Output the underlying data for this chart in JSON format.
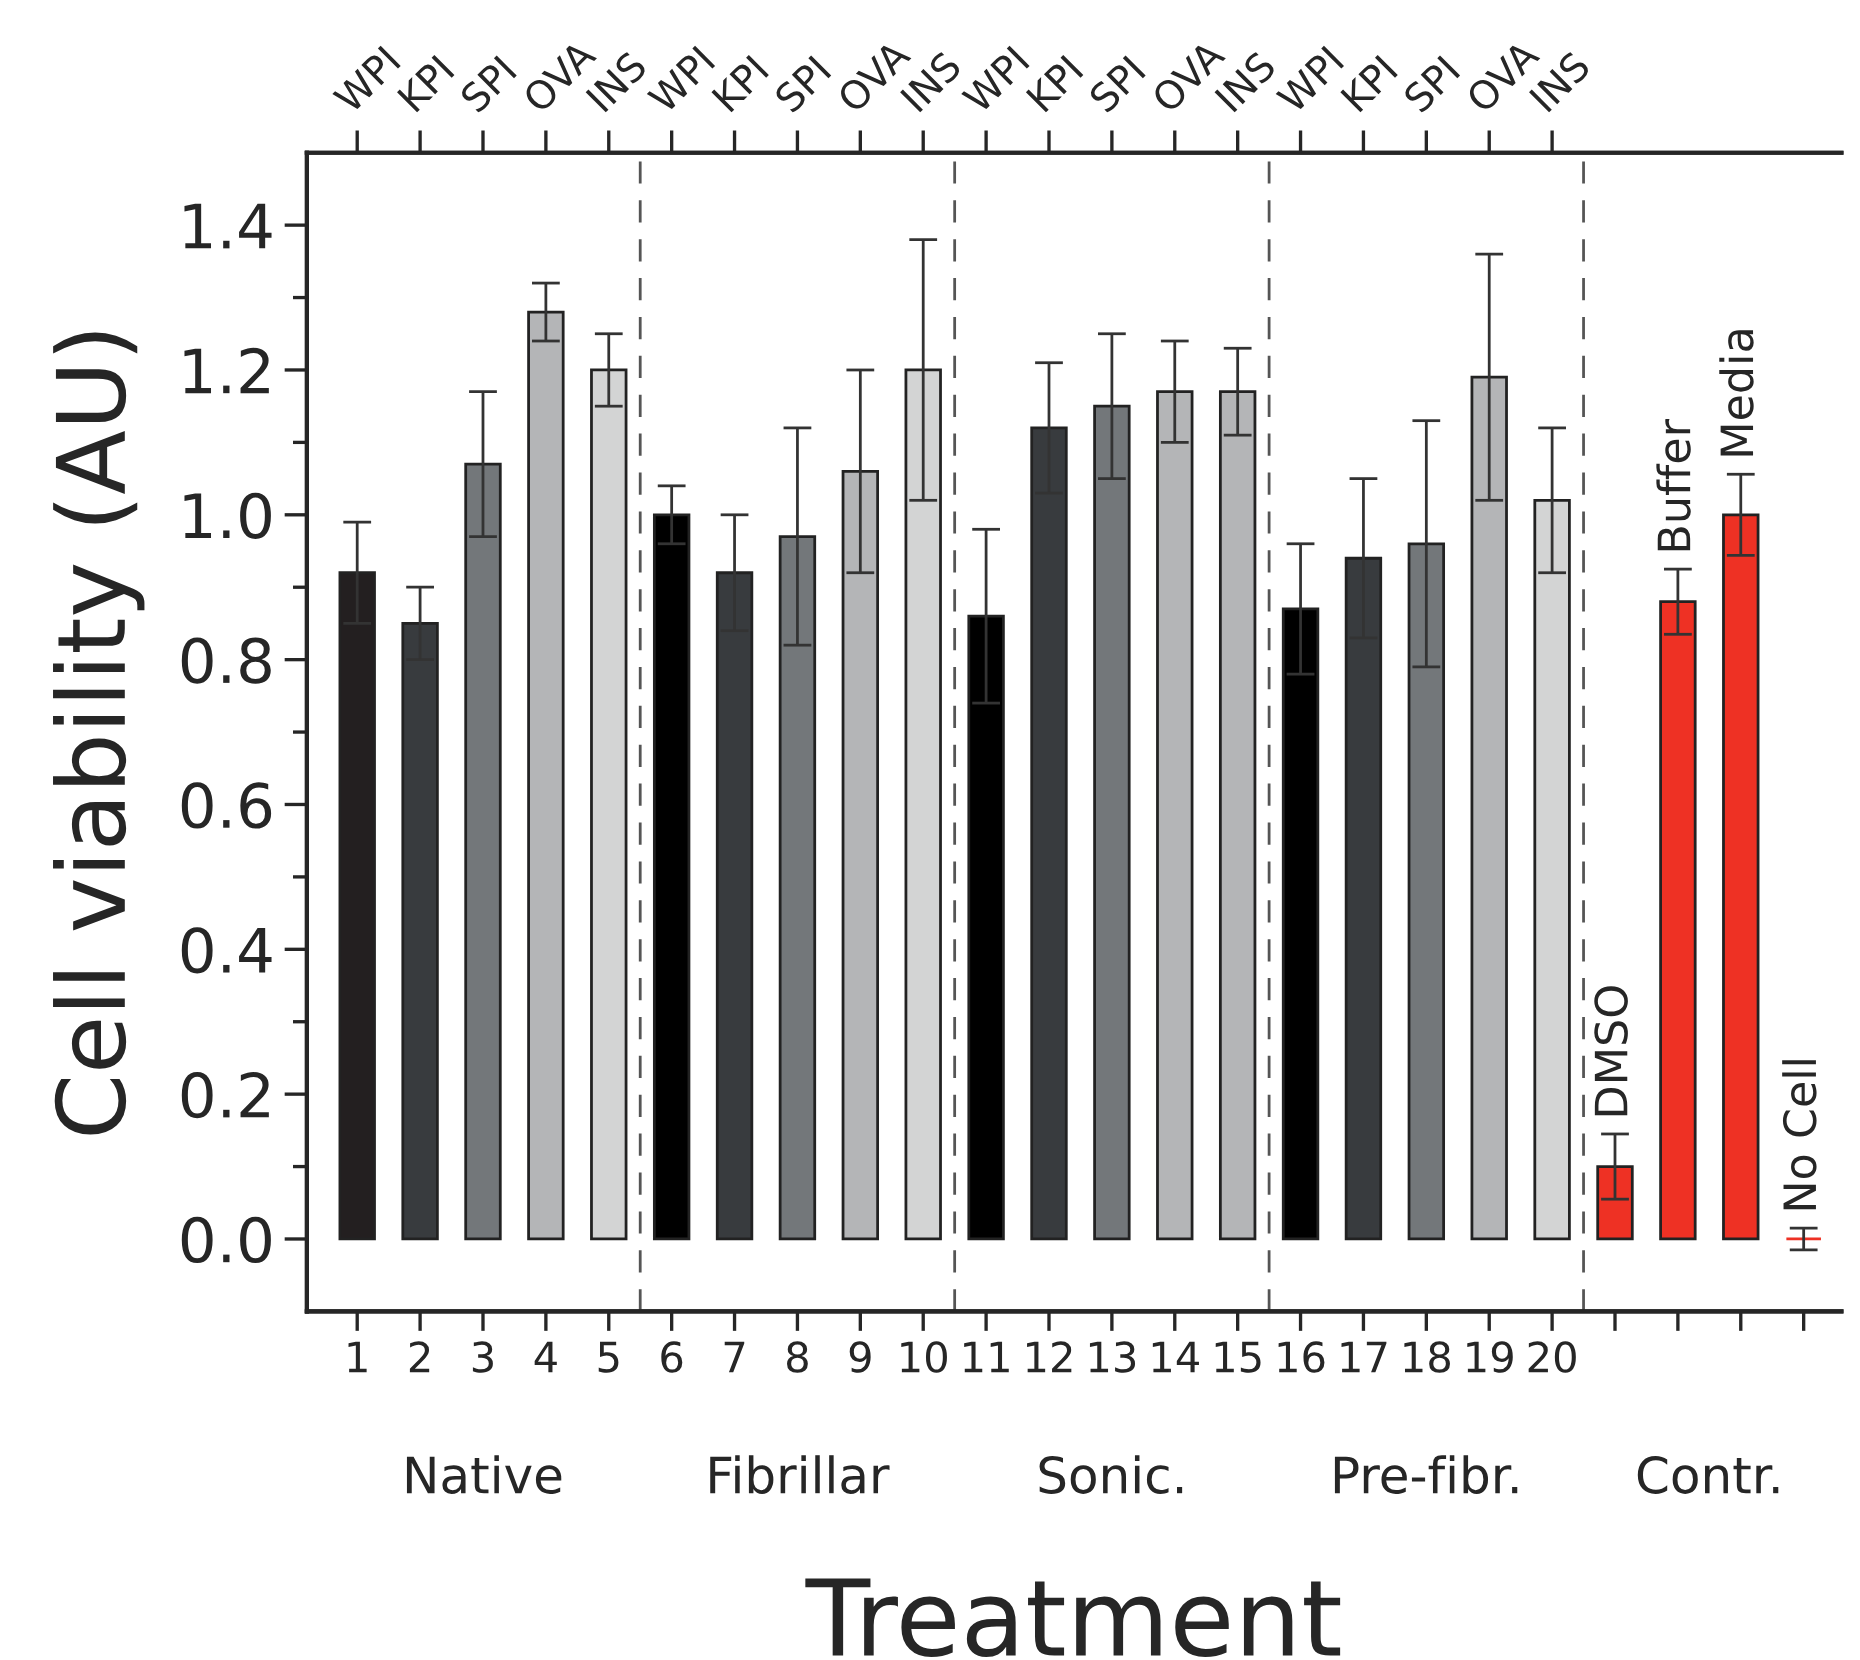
{
  "chart_data": {
    "type": "bar",
    "categories": [
      "1",
      "2",
      "3",
      "4",
      "5",
      "6",
      "7",
      "8",
      "9",
      "10",
      "11",
      "12",
      "13",
      "14",
      "15",
      "16",
      "17",
      "18",
      "19",
      "20",
      "DMSO",
      "Buffer",
      "Media",
      "No Cell"
    ],
    "series": [
      {
        "colors": [
          "#231f20",
          "#383b3e",
          "#73777a",
          "#b4b5b7",
          "#d3d4d4",
          "#000000",
          "#383b3e",
          "#73777a",
          "#b4b5b7",
          "#d3d4d4",
          "#000000",
          "#383b3e",
          "#73777a",
          "#b4b5b7",
          "#b4b5b7",
          "#000000",
          "#383b3e",
          "#73777a",
          "#b4b5b7",
          "#d3d4d4",
          null,
          null,
          null,
          null
        ],
        "values": [
          0.92,
          0.85,
          1.07,
          1.28,
          1.2,
          1.0,
          0.92,
          0.97,
          1.06,
          1.2,
          0.86,
          1.12,
          1.15,
          1.17,
          1.17,
          0.87,
          0.94,
          0.96,
          1.19,
          1.02,
          null,
          null,
          null,
          null
        ],
        "errors": [
          0.07,
          0.05,
          0.1,
          0.04,
          0.05,
          0.04,
          0.08,
          0.15,
          0.14,
          0.18,
          0.12,
          0.09,
          0.1,
          0.07,
          0.06,
          0.09,
          0.11,
          0.17,
          0.17,
          0.1,
          null,
          null,
          null,
          null
        ]
      },
      {
        "color": "#ee3124",
        "values": [
          null,
          null,
          null,
          null,
          null,
          null,
          null,
          null,
          null,
          null,
          null,
          null,
          null,
          null,
          null,
          null,
          null,
          null,
          null,
          null,
          0.1,
          0.88,
          1.0,
          0.0
        ],
        "errors": [
          null,
          null,
          null,
          null,
          null,
          null,
          null,
          null,
          null,
          null,
          null,
          null,
          null,
          null,
          null,
          null,
          null,
          null,
          null,
          null,
          0.045,
          0.045,
          0.056,
          0.015
        ]
      }
    ],
    "ylabel": "Cell viability (AU)",
    "xlabel": "Treatment",
    "ylim": [
      -0.1,
      1.5
    ],
    "yticks": [
      {
        "value": 0.0,
        "label": "0.0"
      },
      {
        "value": 0.1,
        "label": null
      },
      {
        "value": 0.2,
        "label": "0.2"
      },
      {
        "value": 0.3,
        "label": null
      },
      {
        "value": 0.4,
        "label": "0.4"
      },
      {
        "value": 0.5,
        "label": null
      },
      {
        "value": 0.6,
        "label": "0.6"
      },
      {
        "value": 0.7,
        "label": null
      },
      {
        "value": 0.8,
        "label": "0.8"
      },
      {
        "value": 0.9,
        "label": null
      },
      {
        "value": 1.0,
        "label": "1.0"
      },
      {
        "value": 1.1,
        "label": null
      },
      {
        "value": 1.2,
        "label": "1.2"
      },
      {
        "value": 1.3,
        "label": null
      },
      {
        "value": 1.4,
        "label": "1.4"
      }
    ],
    "annotations": [
      "Native",
      "Fibrillar",
      "Sonic.",
      "Pre-fibr.",
      "Contr.",
      {
        "text": "WPI",
        "x": "1"
      },
      {
        "text": "KPI",
        "x": "2"
      },
      {
        "text": "SPI",
        "x": "3"
      },
      {
        "text": "OVA",
        "x": "4"
      },
      {
        "text": "INS",
        "x": "5"
      },
      {
        "text": "WPI",
        "x": "6"
      },
      {
        "text": "KPI",
        "x": "7"
      },
      {
        "text": "SPI",
        "x": "8"
      },
      {
        "text": "OVA",
        "x": "9"
      },
      {
        "text": "INS",
        "x": "10"
      },
      {
        "text": "WPI",
        "x": "11"
      },
      {
        "text": "KPI",
        "x": "12"
      },
      {
        "text": "SPI",
        "x": "13"
      },
      {
        "text": "OVA",
        "x": "14"
      },
      {
        "text": "INS",
        "x": "15"
      },
      {
        "text": "WPI",
        "x": "16"
      },
      {
        "text": "KPI",
        "x": "17"
      },
      {
        "text": "SPI",
        "x": "18"
      },
      {
        "text": "OVA",
        "x": "19"
      },
      {
        "text": "INS",
        "x": "20"
      }
    ],
    "grid": false,
    "legend": false
  }
}
